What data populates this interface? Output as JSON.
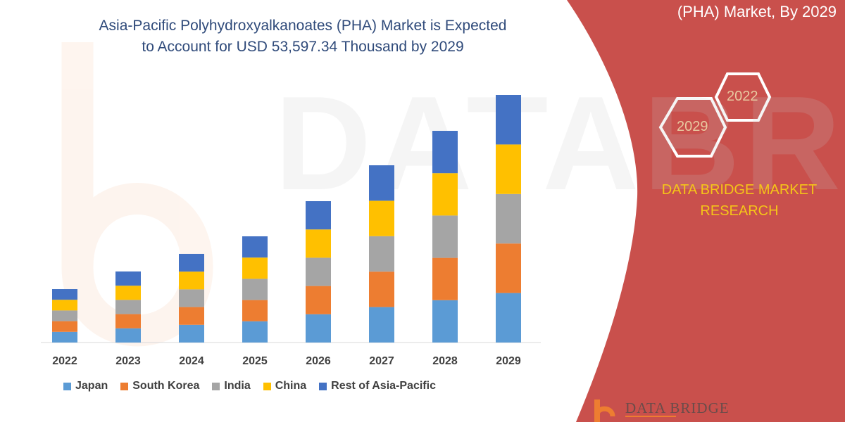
{
  "chart_data": {
    "type": "bar",
    "stacked": true,
    "title": "Asia-Pacific Polyhydroxyalkanoates (PHA) Market is Expected to Account for USD 53,597.34 Thousand by 2029",
    "title_lines": [
      "Asia-Pacific Polyhydroxyalkanoates (PHA) Market is Expected",
      "to Account for USD 53,597.34 Thousand by 2029"
    ],
    "categories": [
      "2022",
      "2023",
      "2024",
      "2025",
      "2026",
      "2027",
      "2028",
      "2029"
    ],
    "series": [
      {
        "name": "Japan",
        "color": "#5B9BD5",
        "values": [
          2314,
          3076,
          3838,
          4598,
          6120,
          7674,
          9166,
          10719
        ]
      },
      {
        "name": "South Korea",
        "color": "#ED7D31",
        "values": [
          2314,
          3076,
          3838,
          4598,
          6120,
          7674,
          9166,
          10719
        ]
      },
      {
        "name": "India",
        "color": "#A5A5A5",
        "values": [
          2314,
          3076,
          3838,
          4598,
          6120,
          7674,
          9166,
          10720
        ]
      },
      {
        "name": "China",
        "color": "#FFC000",
        "values": [
          2314,
          3076,
          3838,
          4598,
          6120,
          7674,
          9166,
          10720
        ]
      },
      {
        "name": "Rest of Asia-Pacific",
        "color": "#4472C4",
        "values": [
          2314,
          3076,
          3838,
          4598,
          6120,
          7674,
          9166,
          10719
        ]
      }
    ],
    "xlabel": "",
    "ylabel": "",
    "ylim": [
      0,
      54000
    ],
    "y_axis_visible": false,
    "grid": false,
    "legend": "bottom"
  },
  "side_panel": {
    "title": "(PHA) Market, By 2029",
    "hex_labels": [
      "2022",
      "2029"
    ],
    "brand_lines": [
      "DATA BRIDGE MARKET",
      "RESEARCH"
    ],
    "logo_text": "DATA BRIDGE",
    "color": "#C9504C",
    "brand_color": "#F5C518"
  }
}
